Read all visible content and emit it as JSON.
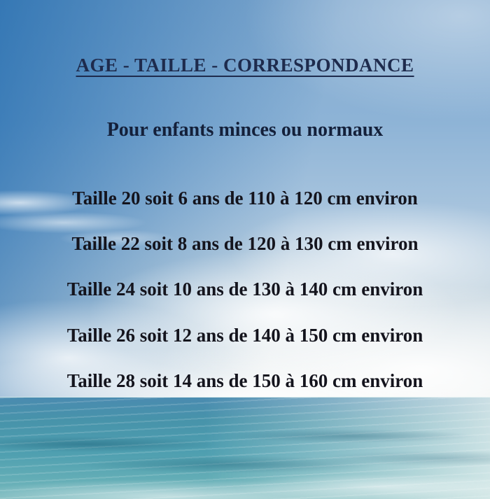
{
  "poster": {
    "title": "AGE - TAILLE - CORRESPONDANCE",
    "subtitle": "Pour enfants minces ou normaux"
  },
  "size_lines": [
    {
      "taille": "20",
      "age_ans": "6",
      "cm_min": "110",
      "cm_max": "120",
      "text": "Taille 20 soit 6 ans de 110 à 120 cm environ"
    },
    {
      "taille": "22",
      "age_ans": "8",
      "cm_min": "120",
      "cm_max": "130",
      "text": "Taille 22 soit 8 ans de 120 à 130 cm environ"
    },
    {
      "taille": "24",
      "age_ans": "10",
      "cm_min": "130",
      "cm_max": "140",
      "text": "Taille 24 soit 10 ans de 130 à 140 cm environ"
    },
    {
      "taille": "26",
      "age_ans": "12",
      "cm_min": "140",
      "cm_max": "150",
      "text": "Taille 26 soit 12 ans de 140 à 150 cm environ"
    },
    {
      "taille": "28",
      "age_ans": "14",
      "cm_min": "150",
      "cm_max": "160",
      "text": "Taille 28 soit 14 ans de 150 à 160 cm environ"
    }
  ],
  "colors": {
    "title_color": "#1e2b4d",
    "subtitle_color": "#14203a",
    "body_color": "#14141d",
    "sky_top": "#84abd0",
    "sky_top_left": "#2e77b4",
    "sky_top_right": "#a2bbd4",
    "sky_horizon": "#e9edec",
    "ocean_deep": "#4a8bb0",
    "ocean_teal": "#4f9fb0",
    "ocean_foam": "#c2d8d5"
  }
}
